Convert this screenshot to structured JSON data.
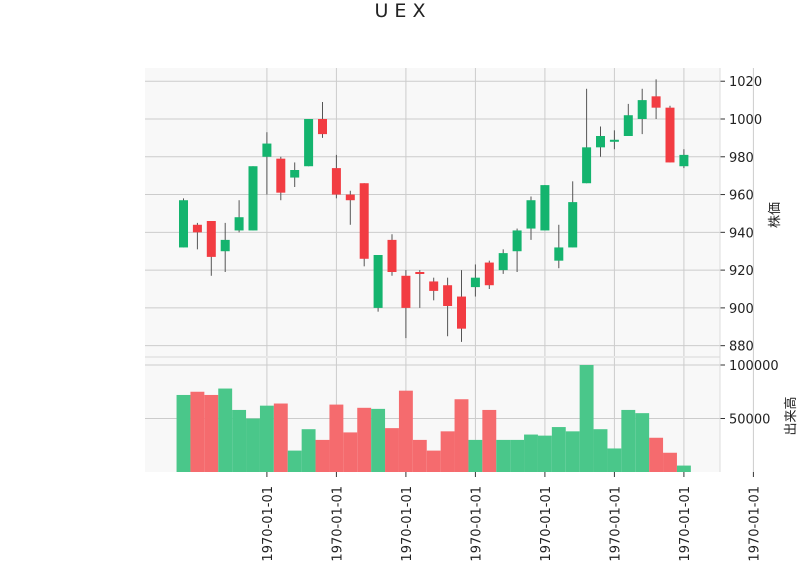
{
  "chart_data": {
    "type": "candlestick",
    "title": "U E X",
    "ylabel_price": "株価",
    "ylabel_volume": "出来高",
    "price_ylim": [
      874,
      1027
    ],
    "price_yticks": [
      880,
      900,
      920,
      940,
      960,
      980,
      1000,
      1020
    ],
    "volume_ylim": [
      0,
      100000
    ],
    "volume_yticks": [
      50000,
      100000
    ],
    "volume_ytick_labels": [
      "50000",
      "100000"
    ],
    "x_tick_labels": [
      "1970-01-01",
      "1970-01-01",
      "1970-01-01",
      "1970-01-01",
      "1970-01-01",
      "1970-01-01",
      "1970-01-01",
      "1970-01-01"
    ],
    "x_tick_indices": [
      6,
      11,
      16,
      21,
      26,
      31,
      36,
      41
    ],
    "grid": true,
    "colors": {
      "up": "#14b46e",
      "down": "#f23c42",
      "volume_up": "#4ac78a",
      "volume_down": "#f56b6e",
      "grid": "#cccccc",
      "panel_bg": "#f8f8f8"
    },
    "ohlc": [
      {
        "open": 932,
        "high": 958,
        "low": 932,
        "close": 957,
        "volume": 72000
      },
      {
        "open": 944,
        "high": 945,
        "low": 931,
        "close": 940,
        "volume": 75000
      },
      {
        "open": 946,
        "high": 946,
        "low": 917,
        "close": 927,
        "volume": 72000
      },
      {
        "open": 930,
        "high": 945,
        "low": 919,
        "close": 936,
        "volume": 78000
      },
      {
        "open": 941,
        "high": 957,
        "low": 940,
        "close": 948,
        "volume": 58000
      },
      {
        "open": 941,
        "high": 975,
        "low": 941,
        "close": 975,
        "volume": 50000
      },
      {
        "open": 980,
        "high": 993,
        "low": 960,
        "close": 987,
        "volume": 62000
      },
      {
        "open": 979,
        "high": 980,
        "low": 957,
        "close": 961,
        "volume": 64000
      },
      {
        "open": 969,
        "high": 977,
        "low": 964,
        "close": 973,
        "volume": 20000
      },
      {
        "open": 975,
        "high": 1000,
        "low": 975,
        "close": 1000,
        "volume": 40000
      },
      {
        "open": 1000,
        "high": 1009,
        "low": 990,
        "close": 992,
        "volume": 30000
      },
      {
        "open": 974,
        "high": 981,
        "low": 958,
        "close": 960,
        "volume": 63000
      },
      {
        "open": 960,
        "high": 962,
        "low": 944,
        "close": 957,
        "volume": 37000
      },
      {
        "open": 966,
        "high": 966,
        "low": 922,
        "close": 926,
        "volume": 60000
      },
      {
        "open": 900,
        "high": 928,
        "low": 898,
        "close": 928,
        "volume": 59000
      },
      {
        "open": 936,
        "high": 939,
        "low": 917,
        "close": 919,
        "volume": 41000
      },
      {
        "open": 917,
        "high": 920,
        "low": 884,
        "close": 900,
        "volume": 76000
      },
      {
        "open": 919,
        "high": 920,
        "low": 900,
        "close": 918,
        "volume": 30000
      },
      {
        "open": 914,
        "high": 916,
        "low": 904,
        "close": 909,
        "volume": 20000
      },
      {
        "open": 912,
        "high": 916,
        "low": 885,
        "close": 901,
        "volume": 38000
      },
      {
        "open": 906,
        "high": 920,
        "low": 882,
        "close": 889,
        "volume": 68000
      },
      {
        "open": 911,
        "high": 923,
        "low": 906,
        "close": 916,
        "volume": 30000
      },
      {
        "open": 924,
        "high": 925,
        "low": 910,
        "close": 912,
        "volume": 58000
      },
      {
        "open": 920,
        "high": 931,
        "low": 918,
        "close": 929,
        "volume": 30000
      },
      {
        "open": 930,
        "high": 942,
        "low": 919,
        "close": 941,
        "volume": 30000
      },
      {
        "open": 942,
        "high": 959,
        "low": 936,
        "close": 957,
        "volume": 35000
      },
      {
        "open": 941,
        "high": 965,
        "low": 941,
        "close": 965,
        "volume": 34000
      },
      {
        "open": 925,
        "high": 944,
        "low": 921,
        "close": 932,
        "volume": 42000
      },
      {
        "open": 932,
        "high": 967,
        "low": 932,
        "close": 956,
        "volume": 38000
      },
      {
        "open": 966,
        "high": 1016,
        "low": 966,
        "close": 985,
        "volume": 100000
      },
      {
        "open": 985,
        "high": 996,
        "low": 980,
        "close": 991,
        "volume": 40000
      },
      {
        "open": 988,
        "high": 994,
        "low": 984,
        "close": 989,
        "volume": 22000
      },
      {
        "open": 991,
        "high": 1008,
        "low": 991,
        "close": 1002,
        "volume": 58000
      },
      {
        "open": 1000,
        "high": 1016,
        "low": 992,
        "close": 1010,
        "volume": 55000
      },
      {
        "open": 1012,
        "high": 1021,
        "low": 1000,
        "close": 1006,
        "volume": 32000
      },
      {
        "open": 1006,
        "high": 1007,
        "low": 977,
        "close": 977,
        "volume": 18000
      },
      {
        "open": 975,
        "high": 984,
        "low": 974,
        "close": 981,
        "volume": 6000
      }
    ]
  }
}
